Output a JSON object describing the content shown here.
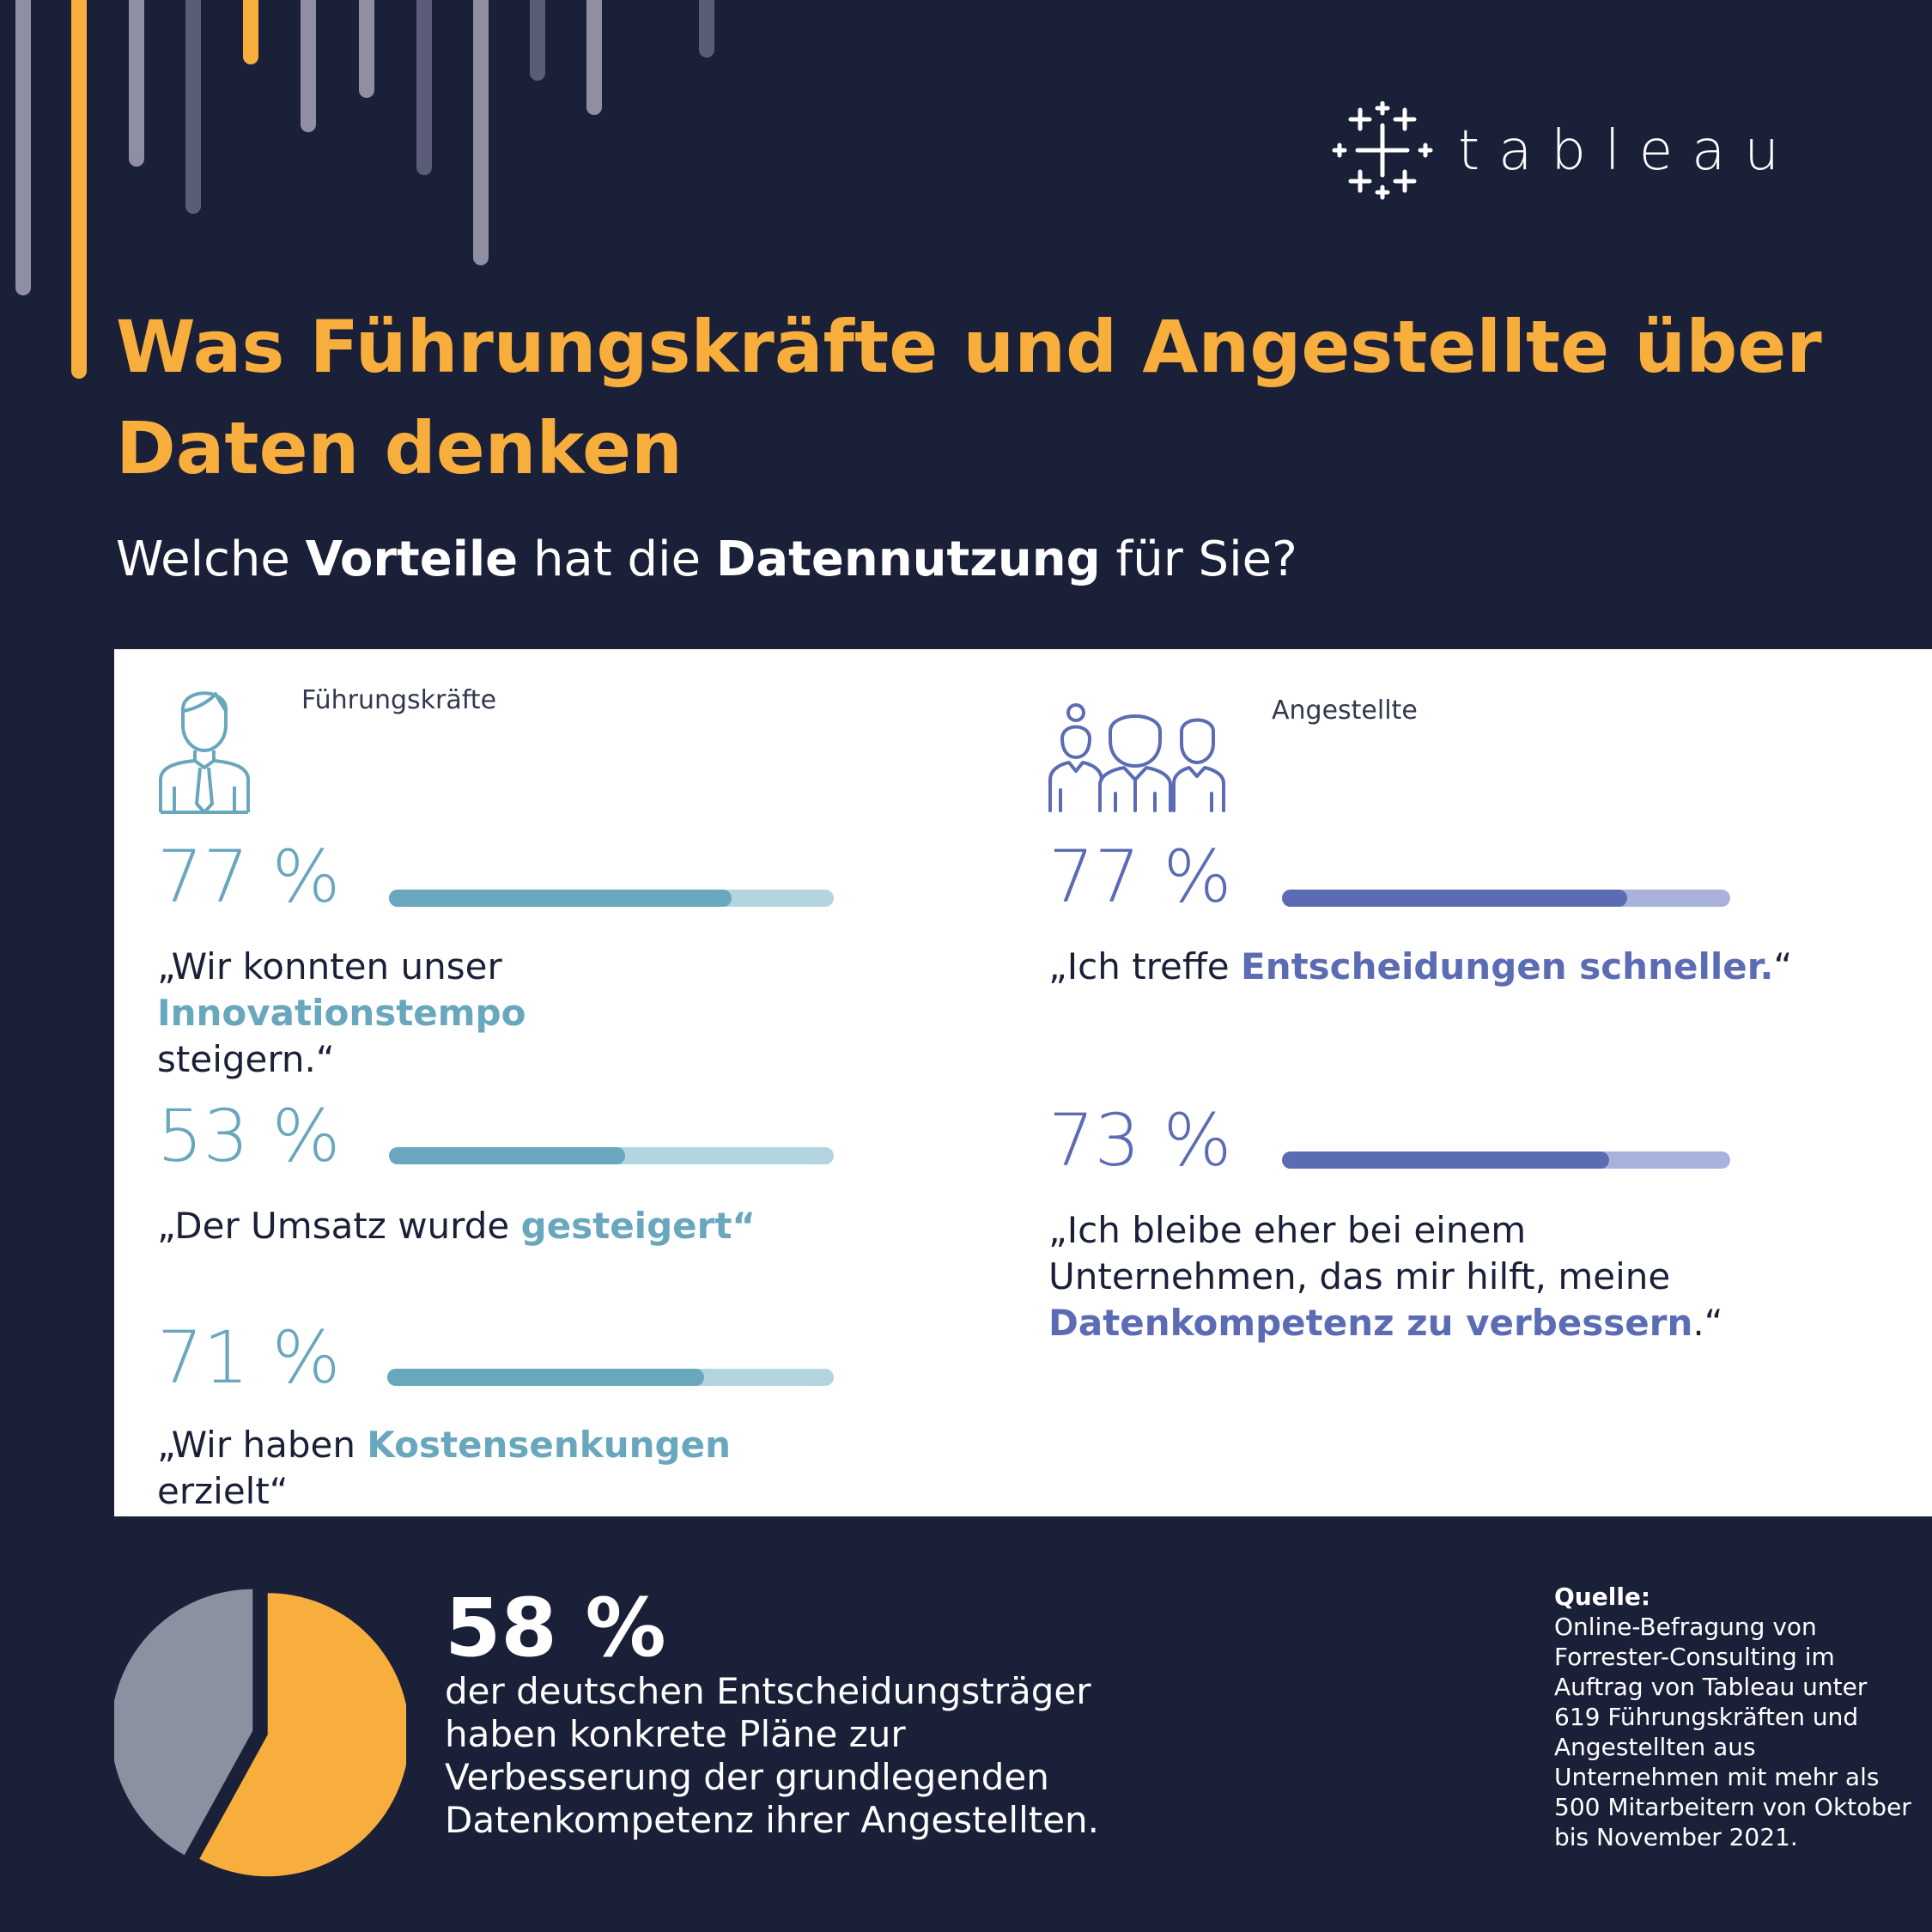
{
  "brand": {
    "name": "tableau"
  },
  "title": "Was Führungskräfte und Angestellte über Daten denken",
  "question": {
    "pre": "Welche ",
    "b1": "Vorteile",
    "mid": " hat die ",
    "b2": "Datennutzung",
    "post": " für Sie?"
  },
  "icons": {
    "executive": "businessman-icon",
    "employees": "group-of-people-icon"
  },
  "colors": {
    "background": "#1b2039",
    "accent": "#f7ae3d",
    "teal": "#68a7bd",
    "blue": "#5b6cb5",
    "pie_rest": "#8a91a0"
  },
  "groups": {
    "executives": {
      "label": "Führungskräfte",
      "items": [
        {
          "pct_label": "77 %",
          "quote_pre": "„Wir konnten unser ",
          "quote_hl": "Innovationstempo",
          "quote_post": " steigern.“"
        },
        {
          "pct_label": "53 %",
          "quote_pre": "„Der Umsatz wurde ",
          "quote_hl": "gesteigert“",
          "quote_post": ""
        },
        {
          "pct_label": "71 %",
          "quote_pre": "„Wir haben ",
          "quote_hl": "Kostensenkungen",
          "quote_post": " erzielt“"
        }
      ]
    },
    "employees": {
      "label": "Angestellte",
      "items": [
        {
          "pct_label": "77 %",
          "quote_pre": "„Ich treffe ",
          "quote_hl": "Entscheidungen schneller.",
          "quote_post": "“"
        },
        {
          "pct_label": "73 %",
          "quote_pre": "„Ich bleibe eher bei einem Unternehmen, das mir hilft, meine ",
          "quote_hl": "Datenkompetenz zu verbessern",
          "quote_post": ".“"
        }
      ]
    }
  },
  "highlight": {
    "pct_label": "58 %",
    "text": "der deutschen Entscheidungsträger haben konkrete Pläne zur Verbesserung der grundlegenden Datenkompetenz ihrer Angestellten."
  },
  "source": {
    "title": "Quelle:",
    "text": "Online-Befragung von Forrester-Consulting im Auftrag von Tableau unter 619 Führungskräften und Angestellten aus Unternehmen mit mehr als 500 Mitarbeitern von Oktober bis November 2021."
  },
  "chart_data": [
    {
      "type": "bar",
      "categories": [
        "Innovationstempo",
        "gesteigert",
        "Kostensenkungen"
      ],
      "values": [
        77,
        53,
        71
      ],
      "ylim": [
        0,
        100
      ]
    },
    {
      "type": "bar",
      "categories": [
        "Entscheidungen schneller.",
        "Datenkompetenz zu verbessern"
      ],
      "values": [
        77,
        73
      ],
      "ylim": [
        0,
        100
      ]
    },
    {
      "type": "pie",
      "values": [
        58,
        42
      ]
    }
  ]
}
